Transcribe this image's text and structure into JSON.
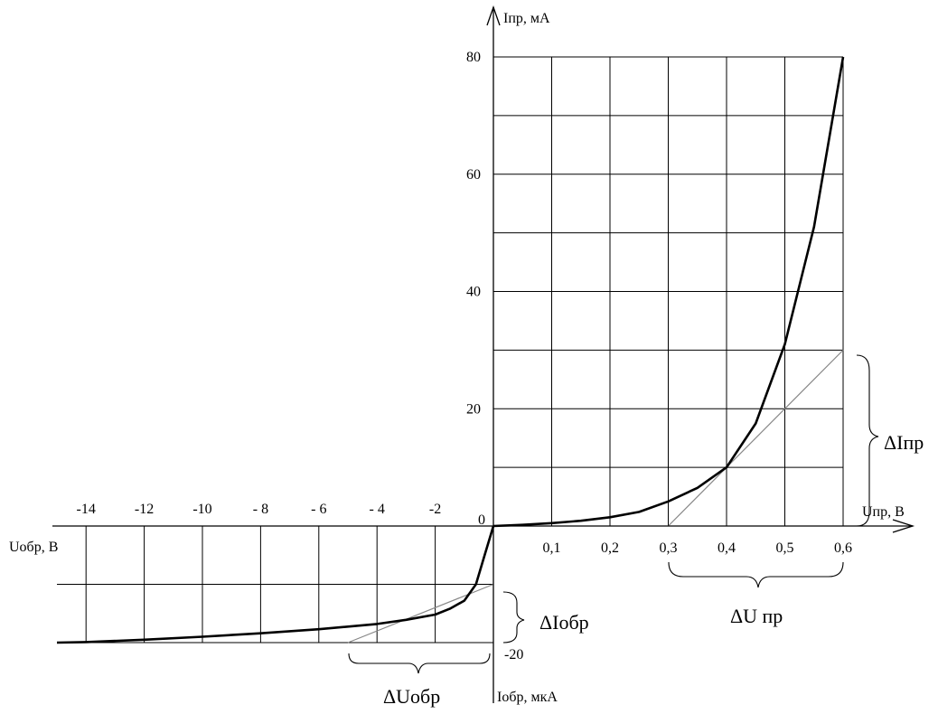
{
  "chart_data": {
    "type": "line",
    "title": "",
    "axes": {
      "forward_current_label": "Iпр, мА",
      "forward_voltage_label": "Uпр, В",
      "reverse_voltage_label": "Uобр, В",
      "reverse_current_label": "Iобр, мкА",
      "origin_label": "0",
      "forward_current_ticks": [
        "20",
        "40",
        "60",
        "80"
      ],
      "forward_voltage_ticks": [
        "0,1",
        "0,2",
        "0,3",
        "0,4",
        "0,5",
        "0,6"
      ],
      "reverse_voltage_ticks": [
        "-14",
        "-12",
        "-10",
        "- 8",
        "- 6",
        "- 4",
        "-2"
      ],
      "reverse_current_ticks": [
        "-20"
      ],
      "forward_voltage_range": [
        0,
        0.6
      ],
      "forward_current_range": [
        0,
        80
      ],
      "reverse_voltage_range": [
        -15,
        0
      ],
      "reverse_current_range": [
        -20,
        0
      ],
      "grid": true
    },
    "forward_curve": {
      "x": [
        0,
        0.05,
        0.1,
        0.15,
        0.2,
        0.25,
        0.3,
        0.35,
        0.4,
        0.45,
        0.5,
        0.55,
        0.6
      ],
      "y": [
        0,
        0.2,
        0.5,
        0.9,
        1.5,
        2.4,
        4.2,
        6.5,
        10,
        17.5,
        31,
        51,
        80
      ]
    },
    "reverse_curve": {
      "x": [
        0,
        -0.3,
        -0.6,
        -1,
        -1.5,
        -2,
        -3,
        -4,
        -6,
        -8,
        -10,
        -12,
        -14,
        -15
      ],
      "y": [
        0,
        -5,
        -10,
        -12.8,
        -14.2,
        -15.2,
        -16.1,
        -16.8,
        -17.7,
        -18.4,
        -19.0,
        -19.5,
        -19.9,
        -20
      ]
    },
    "forward_tangent": {
      "x": [
        0.3,
        0.6
      ],
      "y": [
        0,
        30
      ]
    },
    "reverse_tangent": {
      "x": [
        -5,
        0
      ],
      "y": [
        -20,
        -10
      ]
    },
    "annotations": {
      "delta_i_forward": "ΔIпр",
      "delta_u_forward": "ΔU пр",
      "delta_i_reverse": "ΔIобр",
      "delta_u_reverse": "ΔUобр"
    }
  }
}
